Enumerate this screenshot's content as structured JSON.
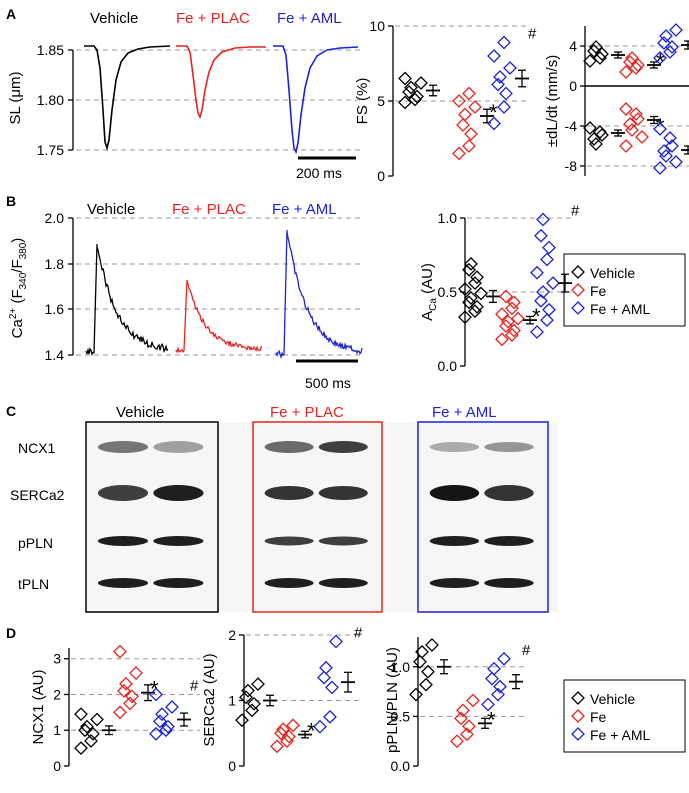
{
  "colors": {
    "vehicle": "#000000",
    "fe_plac": "#e8231f",
    "fe_aml": "#1e22d6",
    "grid": "#9a9a9a"
  },
  "panel_labels": {
    "a": "A",
    "b": "B",
    "c": "C",
    "d": "D"
  },
  "groups": {
    "vehicle": "Vehicle",
    "fe_plac": "Fe + PLAC",
    "fe_aml": "Fe + AML"
  },
  "legend": {
    "vehicle": "Vehicle",
    "fe": "Fe",
    "fe_aml": "Fe + AML"
  },
  "symbols": {
    "star": "*",
    "hash": "#"
  },
  "panelA": {
    "ylabel": "SL (μm)",
    "yticks": [
      "1.85",
      "1.80",
      "1.75"
    ],
    "scalebar": "200 ms"
  },
  "panelB": {
    "ylabel_main": "Ca",
    "ylabel_sup": "2+",
    "ylabel_mid": " (F",
    "ylabel_sub1": "340",
    "ylabel_slash": "/F",
    "ylabel_sub2": "380",
    "ylabel_end": ")",
    "yticks": [
      "2.0",
      "1.8",
      "1.6",
      "1.4"
    ],
    "scalebar": "500 ms"
  },
  "panelC": {
    "proteins": [
      "NCX1",
      "SERCa2",
      "pPLN",
      "tPLN"
    ]
  },
  "chart_data": [
    {
      "id": "fs",
      "type": "scatter",
      "title": "",
      "xlabel": "",
      "ylabel": "FS (%)",
      "ylim": [
        0,
        10
      ],
      "yticks": [
        "0",
        "5",
        "10"
      ],
      "series": [
        {
          "name": "Vehicle",
          "mean": 5.7,
          "sem": 0.35,
          "points": [
            4.9,
            5.1,
            5.3,
            5.6,
            5.9,
            6.2,
            6.5
          ]
        },
        {
          "name": "Fe",
          "mean": 4.0,
          "sem": 0.45,
          "points": [
            1.5,
            2.0,
            2.8,
            3.4,
            4.1,
            4.6,
            5.0,
            5.5
          ],
          "mark": "*"
        },
        {
          "name": "Fe + AML",
          "mean": 6.5,
          "sem": 0.55,
          "points": [
            3.5,
            4.6,
            5.5,
            6.1,
            6.6,
            7.2,
            8.0,
            8.9
          ],
          "mark": "#"
        }
      ]
    },
    {
      "id": "dldt",
      "type": "scatter",
      "title": "",
      "xlabel": "",
      "ylabel": "±dL/dt (mm/s)",
      "ylim": [
        -9,
        6
      ],
      "yticks": [
        "4",
        "0",
        "-4",
        "-8"
      ],
      "series": [
        {
          "name": "Vehicle",
          "mean": 3.1,
          "sem": 0.3,
          "points": [
            2.5,
            2.8,
            3.2,
            3.5,
            3.9
          ]
        },
        {
          "name": "Fe",
          "mean": 2.1,
          "sem": 0.3,
          "points": [
            1.4,
            1.8,
            2.1,
            2.4,
            2.8
          ],
          "mark": "*"
        },
        {
          "name": "Fe + AML",
          "mean": 4.1,
          "sem": 0.4,
          "points": [
            2.8,
            3.4,
            3.9,
            4.3,
            5.0,
            5.6
          ],
          "mark": "#"
        },
        {
          "name": "Vehicle",
          "mean": -4.7,
          "sem": 0.3,
          "points": [
            -4.2,
            -4.6,
            -4.9,
            -5.3,
            -5.8
          ]
        },
        {
          "name": "Fe",
          "mean": -3.4,
          "sem": 0.35,
          "points": [
            -2.3,
            -2.8,
            -3.3,
            -3.8,
            -4.4,
            -5.1,
            -6.0
          ],
          "mark": "*"
        },
        {
          "name": "Fe + AML",
          "mean": -6.4,
          "sem": 0.4,
          "points": [
            -4.3,
            -5.2,
            -6.0,
            -6.5,
            -7.0,
            -7.6,
            -8.2
          ],
          "mark": "#"
        }
      ]
    },
    {
      "id": "aca",
      "type": "scatter",
      "title": "",
      "xlabel": "",
      "ylabel": "A",
      "ylabel_sub": "Ca",
      "ylabel_end": " (AU)",
      "ylim": [
        0,
        1
      ],
      "yticks": [
        "0.0",
        "0.5",
        "1.0"
      ],
      "series": [
        {
          "name": "Vehicle",
          "mean": 0.47,
          "sem": 0.04,
          "points": [
            0.33,
            0.37,
            0.4,
            0.43,
            0.46,
            0.49,
            0.52,
            0.56,
            0.6,
            0.65,
            0.69
          ]
        },
        {
          "name": "Fe",
          "mean": 0.31,
          "sem": 0.025,
          "points": [
            0.18,
            0.21,
            0.24,
            0.27,
            0.3,
            0.32,
            0.35,
            0.39,
            0.43,
            0.47
          ],
          "mark": "*"
        },
        {
          "name": "Fe + AML",
          "mean": 0.56,
          "sem": 0.06,
          "points": [
            0.23,
            0.31,
            0.38,
            0.44,
            0.5,
            0.56,
            0.63,
            0.72,
            0.8,
            0.88,
            0.99
          ],
          "mark": "#"
        }
      ]
    },
    {
      "id": "ncx1",
      "type": "scatter",
      "title": "",
      "xlabel": "",
      "ylabel": "NCX1 (AU)",
      "ylim": [
        0,
        3.3
      ],
      "yticks": [
        "0",
        "1",
        "2",
        "3"
      ],
      "series": [
        {
          "name": "Vehicle",
          "mean": 1.0,
          "sem": 0.12,
          "points": [
            0.5,
            0.7,
            0.9,
            1.0,
            1.1,
            1.3,
            1.45
          ]
        },
        {
          "name": "Fe",
          "mean": 2.05,
          "sem": 0.22,
          "points": [
            1.5,
            1.75,
            1.95,
            2.1,
            2.3,
            2.6,
            3.2
          ],
          "mark": "*"
        },
        {
          "name": "Fe + AML",
          "mean": 1.3,
          "sem": 0.18,
          "points": [
            0.9,
            1.0,
            1.1,
            1.25,
            1.45,
            1.65,
            2.0
          ],
          "mark": "#"
        }
      ]
    },
    {
      "id": "serca2",
      "type": "scatter",
      "title": "",
      "xlabel": "",
      "ylabel": "SERCa2 (AU)",
      "ylim": [
        0,
        2
      ],
      "yticks": [
        "0",
        "1",
        "2"
      ],
      "series": [
        {
          "name": "Vehicle",
          "mean": 1.0,
          "sem": 0.08,
          "points": [
            0.7,
            0.85,
            0.95,
            1.05,
            1.15,
            1.25
          ]
        },
        {
          "name": "Fe",
          "mean": 0.48,
          "sem": 0.05,
          "points": [
            0.3,
            0.38,
            0.45,
            0.5,
            0.56,
            0.62
          ],
          "mark": "*"
        },
        {
          "name": "Fe + AML",
          "mean": 1.28,
          "sem": 0.15,
          "points": [
            0.6,
            0.75,
            1.2,
            1.35,
            1.5,
            1.9
          ],
          "mark": "#"
        }
      ]
    },
    {
      "id": "ppln",
      "type": "scatter",
      "title": "",
      "xlabel": "",
      "ylabel": "pPLN/PLN (AU)",
      "ylim": [
        0,
        1.3
      ],
      "yticks": [
        "0.0",
        "0.5",
        "1.0"
      ],
      "series": [
        {
          "name": "Vehicle",
          "mean": 1.0,
          "sem": 0.07,
          "points": [
            0.72,
            0.82,
            0.95,
            1.05,
            1.15,
            1.22
          ]
        },
        {
          "name": "Fe",
          "mean": 0.43,
          "sem": 0.05,
          "points": [
            0.25,
            0.32,
            0.4,
            0.48,
            0.56,
            0.66
          ],
          "mark": "*"
        },
        {
          "name": "Fe + AML",
          "mean": 0.85,
          "sem": 0.07,
          "points": [
            0.62,
            0.72,
            0.8,
            0.88,
            0.98,
            1.08
          ],
          "mark": "#"
        }
      ]
    }
  ]
}
